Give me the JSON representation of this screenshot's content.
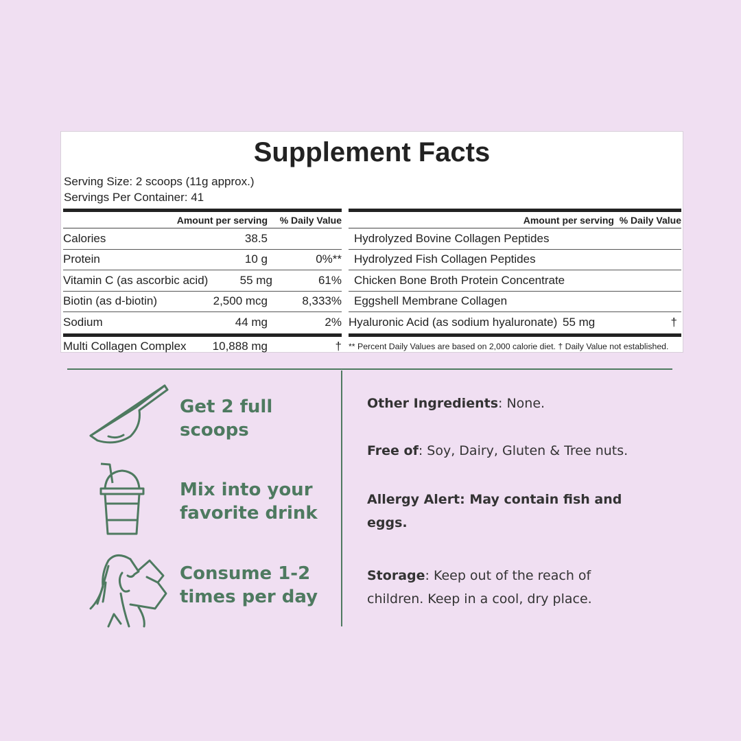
{
  "panel": {
    "title": "Supplement Facts",
    "serving_size": "Serving Size: 2 scoops (11g approx.)",
    "servings_per_container": "Servings Per Container: 41"
  },
  "left_table": {
    "header_amount": "Amount per serving",
    "header_dv": "% Daily Value",
    "rows": [
      {
        "name": "Calories",
        "amount": "38.5",
        "dv": ""
      },
      {
        "name": "Protein",
        "amount": "10 g",
        "dv": "0%**"
      },
      {
        "name": "Vitamin C (as ascorbic acid)",
        "amount": "55 mg",
        "dv": "61%"
      },
      {
        "name": "Biotin (as d-biotin)",
        "amount": "2,500 mcg",
        "dv": "8,333%"
      },
      {
        "name": "Sodium",
        "amount": "44 mg",
        "dv": "2%"
      }
    ],
    "footer": {
      "name": "Multi Collagen Complex",
      "amount": "10,888 mg",
      "dv": "†"
    }
  },
  "right_table": {
    "header": "Amount per serving  % Daily Value",
    "rows": [
      {
        "name": "Hydrolyzed Bovine Collagen Peptides"
      },
      {
        "name": "Hydrolyzed Fish Collagen Peptides"
      },
      {
        "name": "Chicken Bone Broth Protein Concentrate"
      },
      {
        "name": "Eggshell Membrane Collagen"
      }
    ],
    "hyaluronic": {
      "name": "Hyaluronic Acid (as sodium hyaluronate)",
      "amount": "55 mg",
      "dv": "†"
    },
    "footnote": "** Percent Daily Values are based on 2,000 calorie diet. † Daily Value not established."
  },
  "steps": [
    {
      "icon": "scoop-icon",
      "line1": "Get 2 full",
      "line2": "scoops"
    },
    {
      "icon": "drink-cup-icon",
      "line1": "Mix into your",
      "line2": "favorite drink"
    },
    {
      "icon": "woman-drinking-icon",
      "line1": "Consume 1-2",
      "line2": "times per day"
    }
  ],
  "info": {
    "other_label": "Other Ingredients",
    "other_value": ": None.",
    "free_label": "Free of",
    "free_value": ": Soy, Dairy, Gluten & Tree nuts.",
    "allergy": "Allergy Alert: May contain fish and eggs.",
    "storage_label": "Storage",
    "storage_value": ": Keep out of the reach of children. Keep in a cool, dry place."
  },
  "colors": {
    "background": "#f0dff2",
    "accent_green": "#4e7a60",
    "text": "#222222"
  }
}
